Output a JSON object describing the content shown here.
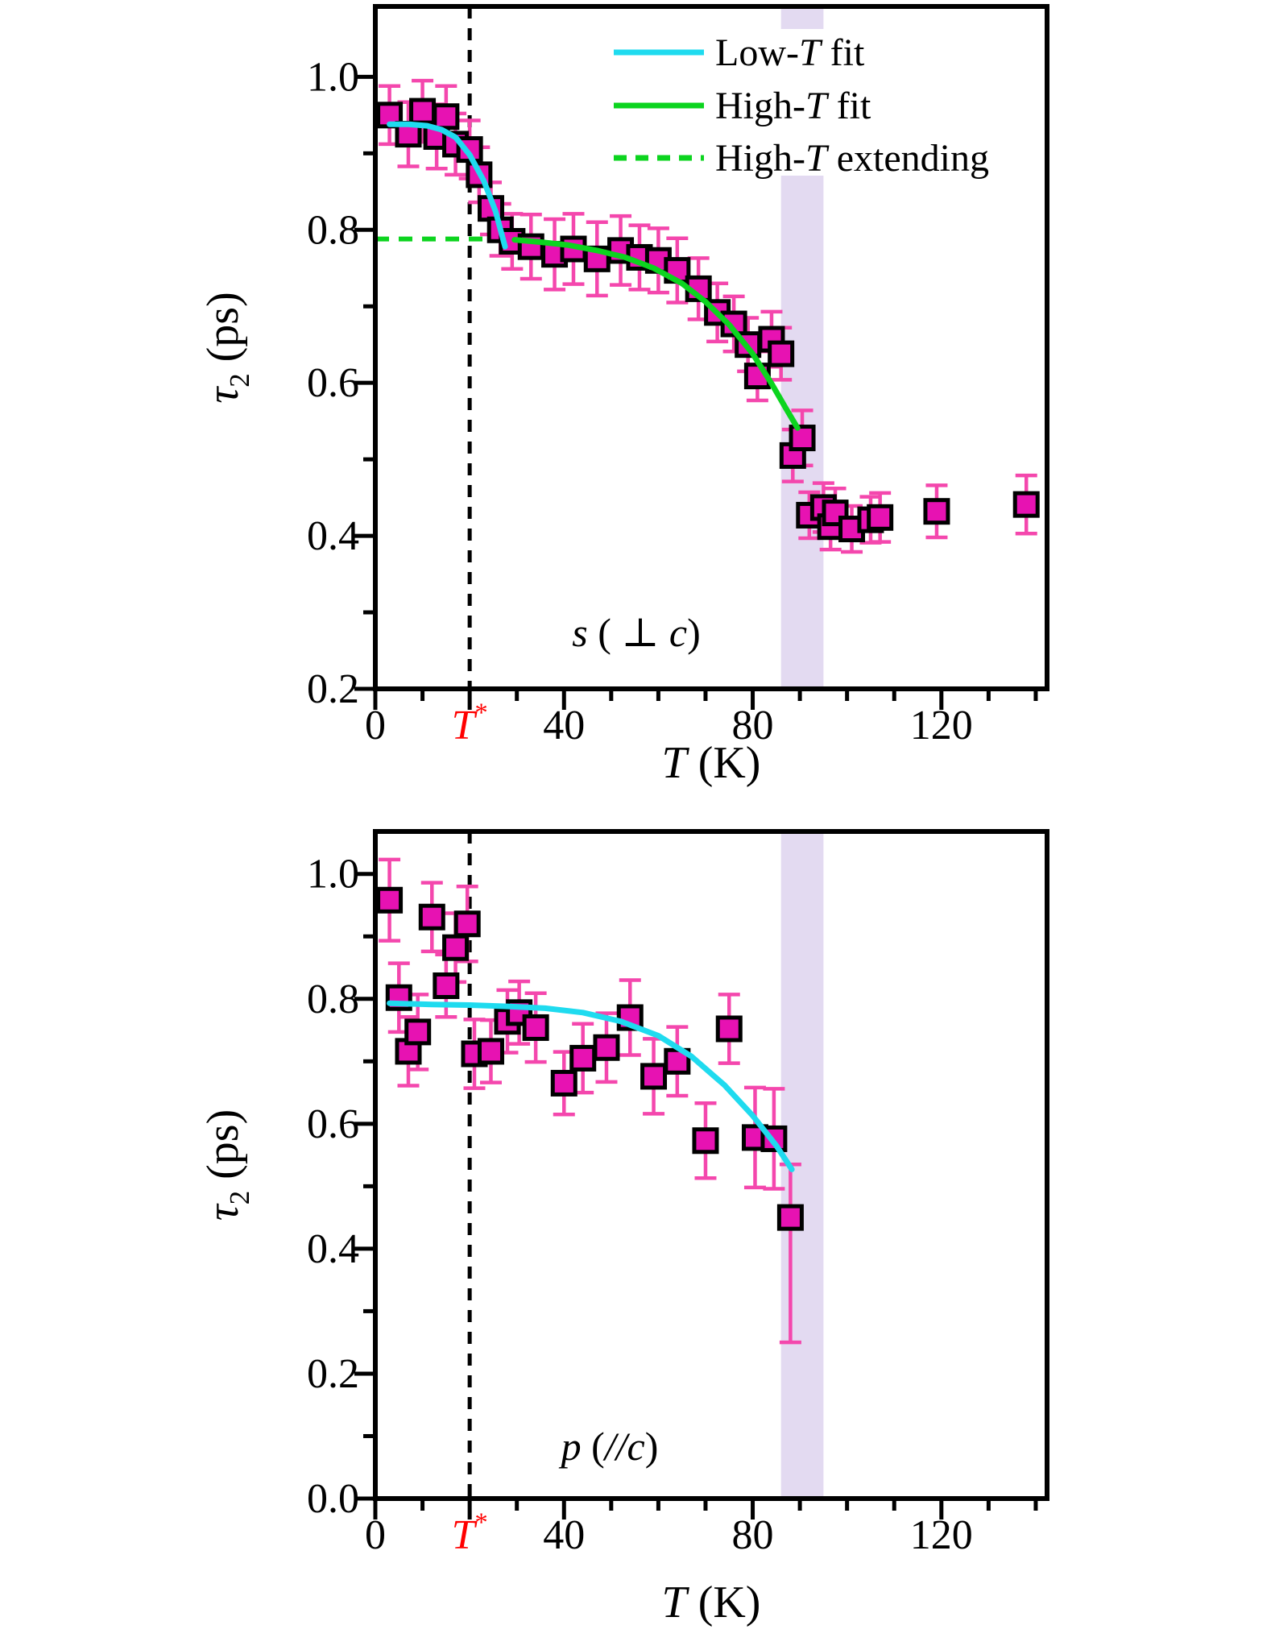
{
  "colors": {
    "marker_fill": "#e712b2",
    "marker_edge": "#000000",
    "error_bar": "#f447ad",
    "band": "#e3daf1",
    "axis": "#000000",
    "tstar_line": "#000000",
    "tstar_label_color": "#ff0000",
    "low_t_fit": "#1fdbef",
    "high_t_fit": "#0cd41f"
  },
  "chart_data": [
    {
      "type": "scatter",
      "panel_label_parts": [
        {
          "text": "s",
          "italic": true
        },
        {
          "text": " ( ",
          "italic": false
        },
        {
          "text": "⊥ ",
          "italic": false
        },
        {
          "text": "c",
          "italic": true
        },
        {
          "text": ")",
          "italic": false
        }
      ],
      "xlabel_parts": [
        {
          "text": "T",
          "italic": true
        },
        {
          "text": " (K)",
          "italic": false
        }
      ],
      "ylabel_parts": [
        {
          "text": "τ",
          "italic": true
        },
        {
          "text": "2",
          "sub": true
        },
        {
          "text": " (ps)",
          "italic": false
        }
      ],
      "x_range": [
        0,
        142.4
      ],
      "y_range": [
        0.2,
        1.092
      ],
      "x_labeled_ticks": [
        {
          "value": 0,
          "label": "0"
        },
        {
          "value": 20,
          "label": "T*",
          "tstar": true
        },
        {
          "value": 40,
          "label": "40"
        },
        {
          "value": 80,
          "label": "80"
        },
        {
          "value": 120,
          "label": "120"
        }
      ],
      "x_minor_ticks": [
        10,
        30,
        50,
        60,
        70,
        90,
        100,
        110,
        130,
        140
      ],
      "y_labeled_ticks": [
        {
          "value": 1.0,
          "label": "1.0"
        },
        {
          "value": 0.8,
          "label": "0.8"
        },
        {
          "value": 0.6,
          "label": "0.6"
        },
        {
          "value": 0.4,
          "label": "0.4"
        },
        {
          "value": 0.2,
          "label": "0.2"
        }
      ],
      "y_minor_ticks": [
        0.9,
        0.7,
        0.5,
        0.3
      ],
      "tstar": {
        "value": 20,
        "label_parts": [
          {
            "text": "T",
            "italic": true
          },
          {
            "text": "*",
            "sup": true
          }
        ]
      },
      "highlight_band": {
        "x_from": 86,
        "x_to": 95
      },
      "series": {
        "name": "tau2_s_perp_c",
        "points": [
          [
            3,
            0.95,
            0.038
          ],
          [
            7,
            0.925,
            0.042
          ],
          [
            10,
            0.955,
            0.04
          ],
          [
            13,
            0.922,
            0.042
          ],
          [
            15,
            0.948,
            0.04
          ],
          [
            17,
            0.912,
            0.04
          ],
          [
            20,
            0.905,
            0.038
          ],
          [
            22,
            0.872,
            0.036
          ],
          [
            24.5,
            0.828,
            0.034
          ],
          [
            26.5,
            0.8,
            0.034
          ],
          [
            29,
            0.785,
            0.036
          ],
          [
            33,
            0.778,
            0.042
          ],
          [
            38,
            0.768,
            0.046
          ],
          [
            42,
            0.775,
            0.046
          ],
          [
            47,
            0.762,
            0.048
          ],
          [
            52,
            0.773,
            0.045
          ],
          [
            56,
            0.764,
            0.042
          ],
          [
            60,
            0.76,
            0.042
          ],
          [
            64,
            0.747,
            0.042
          ],
          [
            68.5,
            0.723,
            0.04
          ],
          [
            72.5,
            0.692,
            0.038
          ],
          [
            76,
            0.677,
            0.036
          ],
          [
            79,
            0.65,
            0.035
          ],
          [
            81,
            0.609,
            0.032
          ],
          [
            84,
            0.657,
            0.036
          ],
          [
            86,
            0.638,
            0.034
          ],
          [
            88.5,
            0.505,
            0.034
          ],
          [
            90.5,
            0.528,
            0.036
          ],
          [
            92,
            0.427,
            0.03
          ],
          [
            95,
            0.437,
            0.032
          ],
          [
            96.5,
            0.412,
            0.03
          ],
          [
            97.5,
            0.43,
            0.032
          ],
          [
            101,
            0.409,
            0.03
          ],
          [
            105,
            0.421,
            0.03
          ],
          [
            107,
            0.424,
            0.032
          ],
          [
            119,
            0.432,
            0.034
          ],
          [
            138,
            0.441,
            0.038
          ]
        ]
      },
      "fits": [
        {
          "name": "low_t_fit",
          "color": "#1fdbef",
          "style": "solid",
          "points": [
            [
              3,
              0.938
            ],
            [
              7,
              0.938
            ],
            [
              11,
              0.936
            ],
            [
              14,
              0.931
            ],
            [
              17,
              0.921
            ],
            [
              20,
              0.898
            ],
            [
              23,
              0.864
            ],
            [
              25.5,
              0.824
            ],
            [
              27.5,
              0.778
            ]
          ]
        },
        {
          "name": "high_t_fit",
          "color": "#0cd41f",
          "style": "solid",
          "points": [
            [
              29.5,
              0.787
            ],
            [
              35,
              0.784
            ],
            [
              41,
              0.78
            ],
            [
              47,
              0.773
            ],
            [
              53,
              0.764
            ],
            [
              59,
              0.75
            ],
            [
              65,
              0.73
            ],
            [
              70,
              0.706
            ],
            [
              75,
              0.676
            ],
            [
              80,
              0.638
            ],
            [
              84,
              0.599
            ],
            [
              87,
              0.567
            ],
            [
              89.5,
              0.541
            ]
          ]
        },
        {
          "name": "high_t_extending",
          "color": "#0cd41f",
          "style": "dashed",
          "points": [
            [
              0,
              0.788
            ],
            [
              29.5,
              0.788
            ]
          ]
        }
      ],
      "legend": {
        "entries": [
          {
            "label": "Low-T fit",
            "line": "solid",
            "color": "#1fdbef"
          },
          {
            "label": "High-T fit",
            "line": "solid",
            "color": "#0cd41f"
          },
          {
            "label": "High-T extending",
            "line": "dashed",
            "color": "#0cd41f"
          }
        ]
      }
    },
    {
      "type": "scatter",
      "panel_label_parts": [
        {
          "text": "p",
          "italic": true
        },
        {
          "text": " (",
          "italic": false
        },
        {
          "text": "//",
          "italic": true
        },
        {
          "text": "c",
          "italic": true
        },
        {
          "text": ")",
          "italic": false
        }
      ],
      "xlabel_parts": [
        {
          "text": "T",
          "italic": true
        },
        {
          "text": " (K)",
          "italic": false
        }
      ],
      "ylabel_parts": [
        {
          "text": "τ",
          "italic": true
        },
        {
          "text": "2",
          "sub": true
        },
        {
          "text": " (ps)",
          "italic": false
        }
      ],
      "x_range": [
        0,
        142.4
      ],
      "y_range": [
        0.0,
        1.068
      ],
      "x_labeled_ticks": [
        {
          "value": 0,
          "label": "0"
        },
        {
          "value": 20,
          "label": "T*",
          "tstar": true
        },
        {
          "value": 40,
          "label": "40"
        },
        {
          "value": 80,
          "label": "80"
        },
        {
          "value": 120,
          "label": "120"
        }
      ],
      "x_minor_ticks": [
        10,
        30,
        50,
        60,
        70,
        90,
        100,
        110,
        130,
        140
      ],
      "y_labeled_ticks": [
        {
          "value": 1.0,
          "label": "1.0"
        },
        {
          "value": 0.8,
          "label": "0.8"
        },
        {
          "value": 0.6,
          "label": "0.6"
        },
        {
          "value": 0.4,
          "label": "0.4"
        },
        {
          "value": 0.2,
          "label": "0.2"
        },
        {
          "value": 0.0,
          "label": "0.0"
        }
      ],
      "y_minor_ticks": [
        0.9,
        0.7,
        0.5,
        0.3,
        0.1
      ],
      "tstar": {
        "value": 20,
        "label_parts": [
          {
            "text": "T",
            "italic": true
          },
          {
            "text": "*",
            "sup": true
          }
        ]
      },
      "highlight_band": {
        "x_from": 86,
        "x_to": 95
      },
      "series": {
        "name": "tau2_p_par_c",
        "points": [
          [
            3,
            0.958,
            0.065
          ],
          [
            5,
            0.802,
            0.055
          ],
          [
            7,
            0.716,
            0.055
          ],
          [
            9,
            0.747,
            0.06
          ],
          [
            12,
            0.931,
            0.055
          ],
          [
            15,
            0.821,
            0.05
          ],
          [
            17,
            0.882,
            0.055
          ],
          [
            19.5,
            0.92,
            0.06
          ],
          [
            21,
            0.712,
            0.055
          ],
          [
            24.5,
            0.716,
            0.05
          ],
          [
            28,
            0.764,
            0.05
          ],
          [
            30.5,
            0.778,
            0.05
          ],
          [
            34,
            0.754,
            0.055
          ],
          [
            40,
            0.665,
            0.05
          ],
          [
            44,
            0.705,
            0.055
          ],
          [
            49,
            0.722,
            0.055
          ],
          [
            54,
            0.77,
            0.06
          ],
          [
            59,
            0.676,
            0.06
          ],
          [
            64,
            0.7,
            0.055
          ],
          [
            70,
            0.573,
            0.06
          ],
          [
            75,
            0.752,
            0.055
          ],
          [
            80.5,
            0.578,
            0.08
          ],
          [
            84.5,
            0.576,
            0.08
          ],
          [
            88,
            0.45,
            [
              0.2,
              0.085
            ]
          ]
        ]
      },
      "fits": [
        {
          "name": "low_t_fit",
          "color": "#1fdbef",
          "style": "solid",
          "points": [
            [
              3,
              0.793
            ],
            [
              12,
              0.791
            ],
            [
              20,
              0.79
            ],
            [
              28,
              0.788
            ],
            [
              36,
              0.785
            ],
            [
              44,
              0.778
            ],
            [
              52,
              0.764
            ],
            [
              60,
              0.741
            ],
            [
              67,
              0.708
            ],
            [
              74,
              0.662
            ],
            [
              80,
              0.613
            ],
            [
              85,
              0.565
            ],
            [
              88.3,
              0.527
            ]
          ]
        }
      ],
      "legend": null
    }
  ]
}
